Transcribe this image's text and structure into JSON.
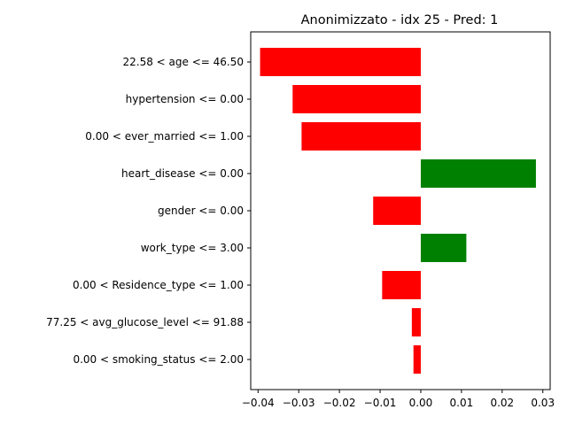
{
  "chart_data": {
    "type": "bar",
    "orientation": "horizontal",
    "title": "Anonimizzato - idx 25 - Pred: 1",
    "xlabel": "",
    "ylabel": "",
    "categories": [
      "22.58 < age <= 46.50",
      "hypertension <= 0.00",
      "0.00 < ever_married <= 1.00",
      "heart_disease <= 0.00",
      "gender <= 0.00",
      "work_type <= 3.00",
      "0.00 < Residence_type <= 1.00",
      "77.25 < avg_glucose_level <= 91.88",
      "0.00 < smoking_status <= 2.00"
    ],
    "values": [
      -0.0395,
      -0.0315,
      -0.0293,
      0.0283,
      -0.0117,
      0.0112,
      -0.0095,
      -0.0022,
      -0.0018
    ],
    "xlim": [
      -0.0418,
      0.0318
    ],
    "xticks": [
      -0.04,
      -0.03,
      -0.02,
      -0.01,
      0.0,
      0.01,
      0.02,
      0.03
    ],
    "xtick_labels": [
      "−0.04",
      "−0.03",
      "−0.02",
      "−0.01",
      "0.00",
      "0.01",
      "0.02",
      "0.03"
    ],
    "colors": {
      "negative": "#ff0000",
      "positive": "#008000"
    },
    "grid": false,
    "legend": "none"
  }
}
